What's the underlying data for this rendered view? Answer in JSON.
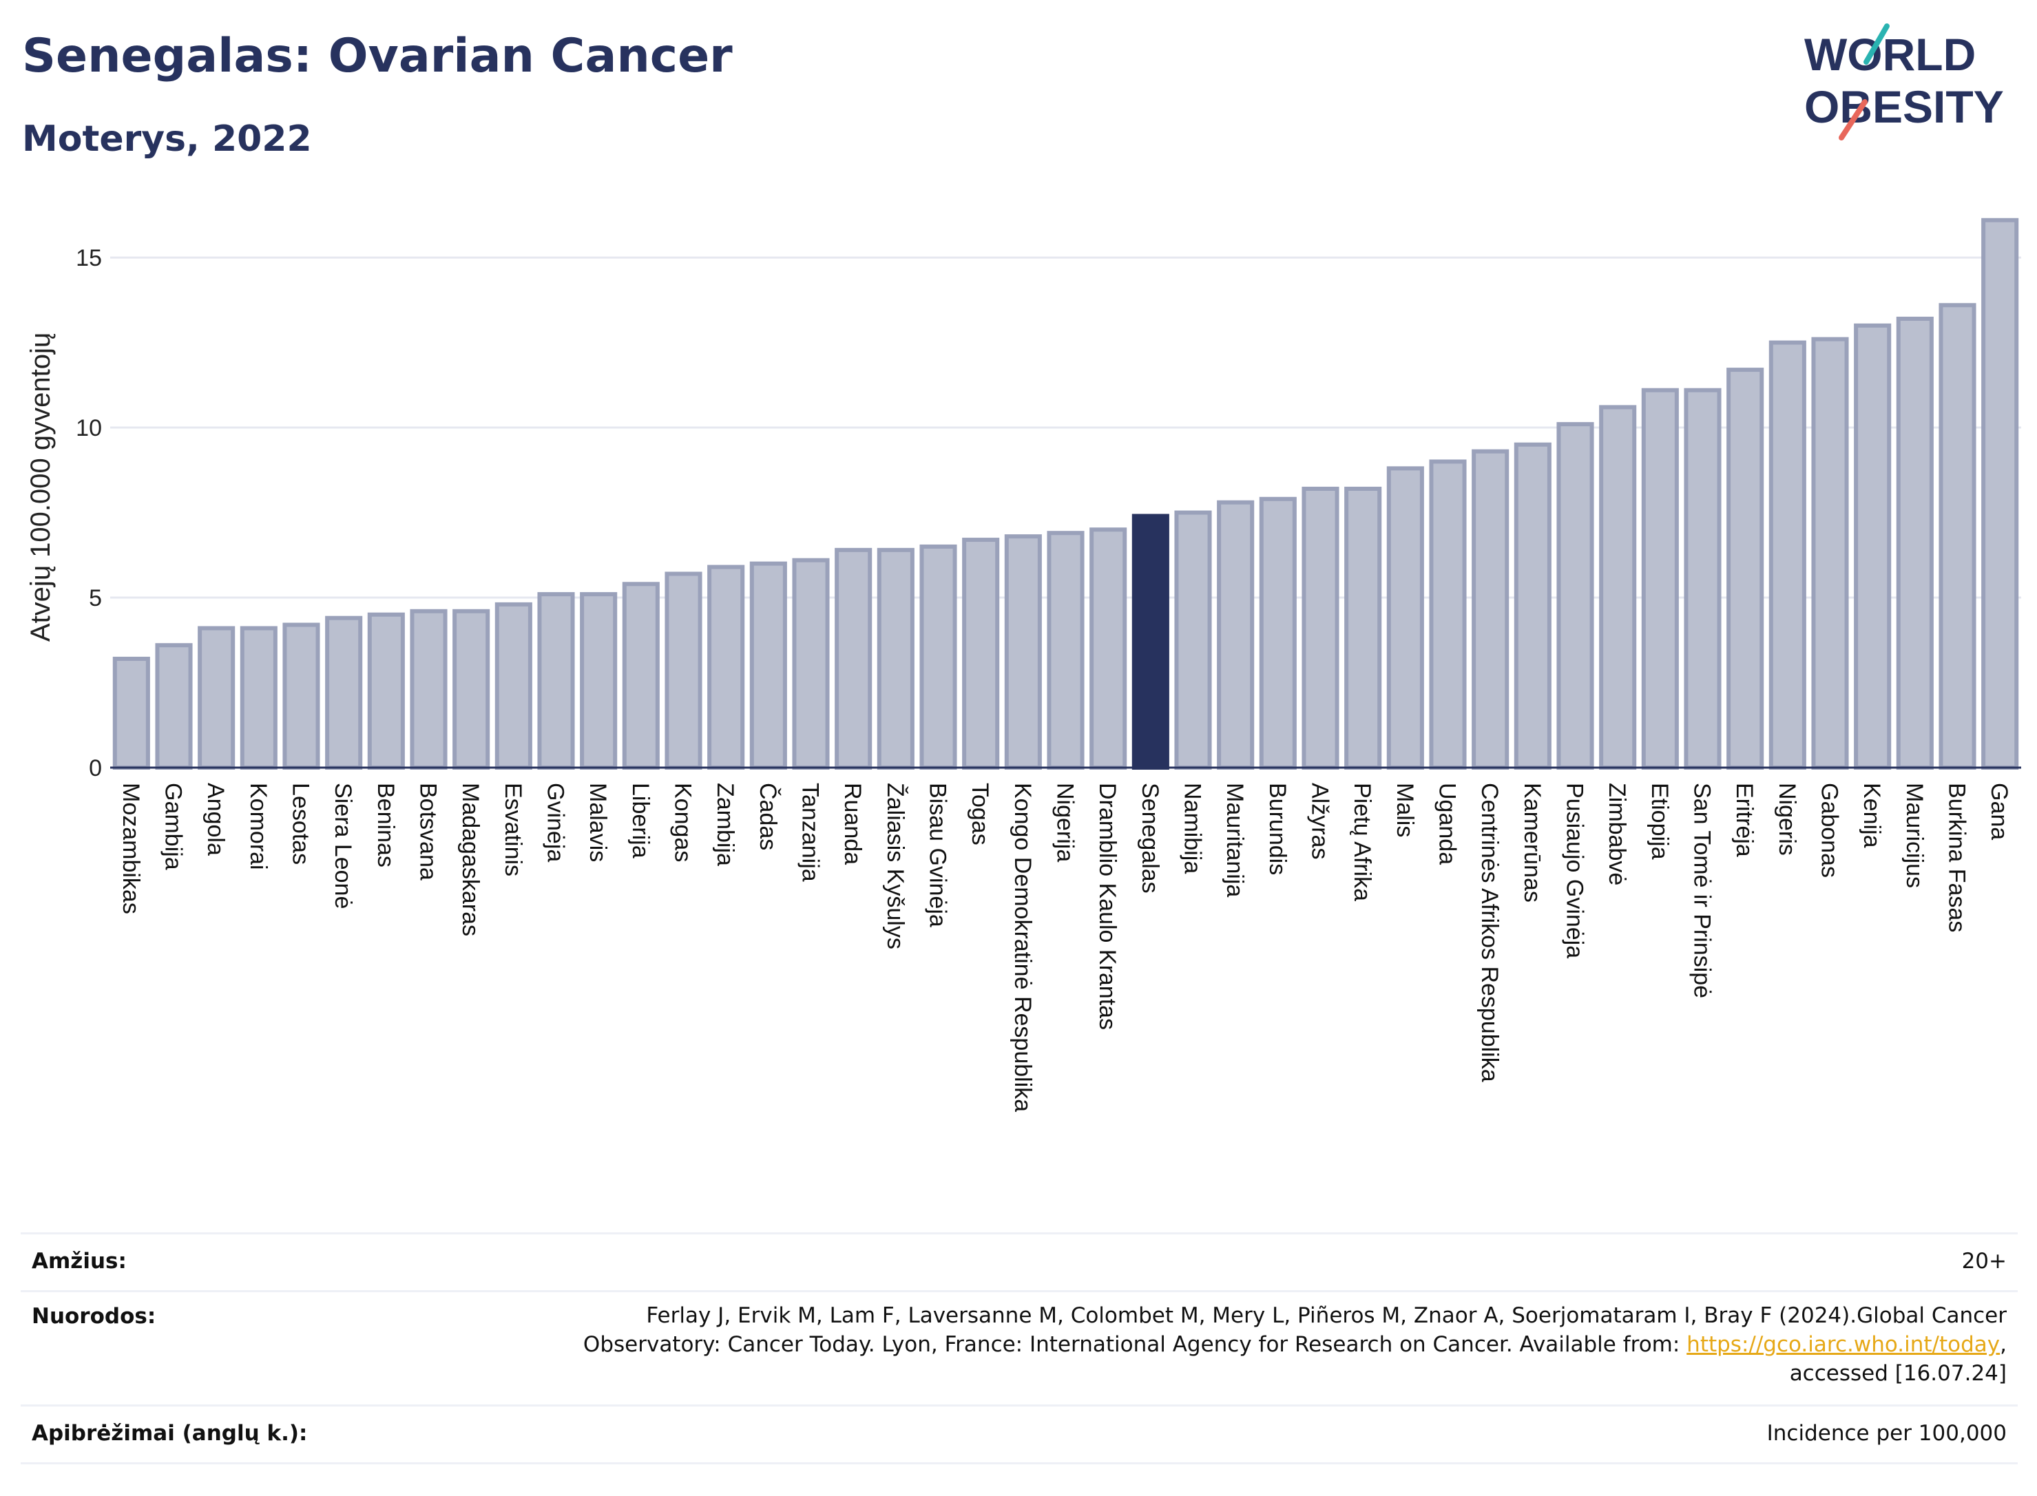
{
  "header": {
    "title": "Senegalas: Ovarian Cancer",
    "subtitle": "Moterys, 2022"
  },
  "logo": {
    "line1": "WORLD",
    "line2": "OBESITY"
  },
  "colors": {
    "bar": "#babfcf",
    "bar_stroke": "#9aa1ba",
    "highlight": "#27325e",
    "grid": "#e6e8f0",
    "accent_teal": "#2ab3b1",
    "accent_coral": "#e8675b"
  },
  "chart_data": {
    "type": "bar",
    "ylabel": "Atvejų 100.000 gyventojų",
    "ylim": [
      0,
      16.5
    ],
    "yticks": [
      0,
      5,
      10,
      15
    ],
    "highlight": "Senegalas",
    "categories": [
      "Mozambikas",
      "Gambija",
      "Angola",
      "Komorai",
      "Lesotas",
      "Siera Leonė",
      "Beninas",
      "Botsvana",
      "Madagaskaras",
      "Esvatinis",
      "Gvinėja",
      "Malavis",
      "Liberija",
      "Kongas",
      "Zambija",
      "Čadas",
      "Tanzanija",
      "Ruanda",
      "Žaliasis Kyšulys",
      "Bisau Gvinėja",
      "Togas",
      "Kongo Demokratinė Respublika",
      "Nigerija",
      "Dramblio Kaulo Krantas",
      "Senegalas",
      "Namibija",
      "Mauritanija",
      "Burundis",
      "Alžyras",
      "Pietų Afrika",
      "Malis",
      "Uganda",
      "Centrinės Afrikos Respublika",
      "Kamerūnas",
      "Pusiaujo Gvinėja",
      "Zimbabvė",
      "Etiopija",
      "San Tomė ir Prinsipė",
      "Eritrėja",
      "Nigeris",
      "Gabonas",
      "Kenija",
      "Mauricijus",
      "Burkina Fasas",
      "Gana"
    ],
    "values": [
      3.2,
      3.6,
      4.1,
      4.1,
      4.2,
      4.4,
      4.5,
      4.6,
      4.6,
      4.8,
      5.1,
      5.1,
      5.4,
      5.7,
      5.9,
      6.0,
      6.1,
      6.4,
      6.4,
      6.5,
      6.7,
      6.8,
      6.9,
      7.0,
      7.4,
      7.5,
      7.8,
      7.9,
      8.2,
      8.2,
      8.8,
      9.0,
      9.3,
      9.5,
      10.1,
      10.6,
      11.1,
      11.1,
      11.7,
      12.5,
      12.6,
      13.0,
      13.2,
      13.6,
      16.1
    ]
  },
  "metadata": {
    "age_label": "Amžius:",
    "age_value": "20+",
    "refs_label": "Nuorodos:",
    "refs_line1": "Ferlay J, Ervik M, Lam F, Laversanne M, Colombet M, Mery L, Piñeros M, Znaor A, Soerjomataram I, Bray F (2024).Global Cancer",
    "refs_line2_pre": "Observatory: Cancer Today. Lyon, France: International Agency for Research on Cancer. Available from: ",
    "refs_link": "https://gco.iarc.who.int/today",
    "refs_line2_post": ",",
    "refs_line3": "accessed [16.07.24]",
    "defs_label": "Apibrėžimai (anglų k.):",
    "defs_value": "Incidence per 100,000"
  }
}
